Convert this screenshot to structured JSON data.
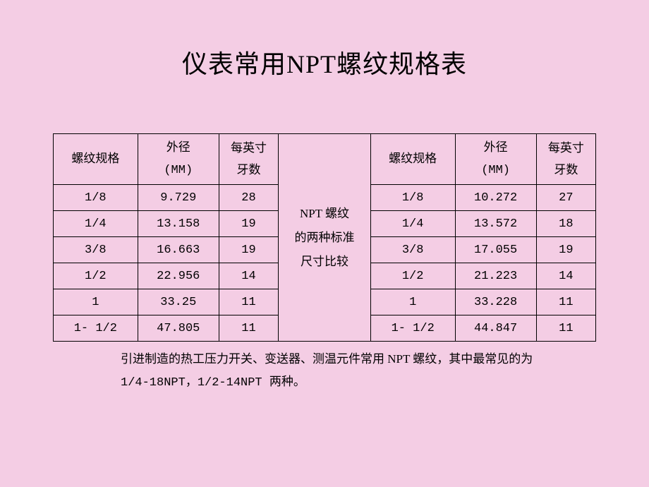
{
  "title": "仪表常用NPT螺纹规格表",
  "colors": {
    "background": "#f4cde4",
    "border": "#000000",
    "text": "#000000"
  },
  "table": {
    "type": "table",
    "headers": {
      "spec": "螺纹规格",
      "diameter_line1": "外径",
      "diameter_line2": "(MM)",
      "tpi_line1": "每英寸",
      "tpi_line2": "牙数"
    },
    "middle_label_line1": "NPT 螺纹",
    "middle_label_line2": "的两种标准",
    "middle_label_line3": "尺寸比较",
    "left_rows": [
      {
        "spec": "1/8",
        "diameter": "9.729",
        "tpi": "28"
      },
      {
        "spec": "1/4",
        "diameter": "13.158",
        "tpi": "19"
      },
      {
        "spec": "3/8",
        "diameter": "16.663",
        "tpi": "19"
      },
      {
        "spec": "1/2",
        "diameter": "22.956",
        "tpi": "14"
      },
      {
        "spec": "1",
        "diameter": "33.25",
        "tpi": "11"
      },
      {
        "spec": "1- 1/2",
        "diameter": "47.805",
        "tpi": "11"
      }
    ],
    "right_rows": [
      {
        "spec": "1/8",
        "diameter": "10.272",
        "tpi": "27"
      },
      {
        "spec": "1/4",
        "diameter": "13.572",
        "tpi": "18"
      },
      {
        "spec": "3/8",
        "diameter": "17.055",
        "tpi": "19"
      },
      {
        "spec": "1/2",
        "diameter": "21.223",
        "tpi": "14"
      },
      {
        "spec": "1",
        "diameter": "33.228",
        "tpi": "11"
      },
      {
        "spec": "1- 1/2",
        "diameter": "44.847",
        "tpi": "11"
      }
    ]
  },
  "notes": {
    "line1": "引进制造的热工压力开关、变送器、测温元件常用 NPT 螺纹，其中最常见的为",
    "line2": "1/4-18NPT，1/2-14NPT 两种。"
  },
  "typography": {
    "title_fontsize": 36,
    "cell_fontsize": 17,
    "note_fontsize": 17
  }
}
